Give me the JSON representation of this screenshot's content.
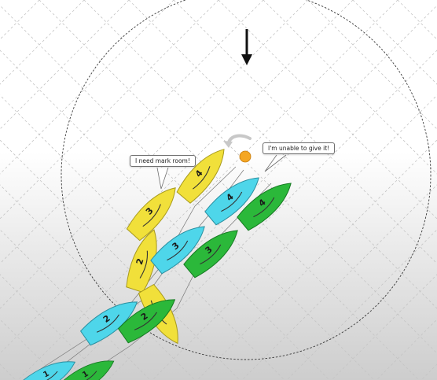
{
  "speech_bubbles": {
    "yellow_boat": "I need mark room!",
    "green_boat": "I'm unable to give it!"
  },
  "diagram": {
    "wind_indicator": "arrow-down-icon",
    "zone": "dashed-circle",
    "mark": "orange-mark",
    "boats": [
      {
        "name": "yellow",
        "color": "#f1e03a",
        "stroke": "#a89a1c",
        "positions": [
          "4",
          "3",
          "2",
          "1"
        ]
      },
      {
        "name": "blue",
        "color": "#4ed6ea",
        "stroke": "#2a8fa0",
        "positions": [
          "4",
          "3",
          "2",
          "1"
        ]
      },
      {
        "name": "green",
        "color": "#2bb83a",
        "stroke": "#167a22",
        "positions": [
          "4",
          "3",
          "2",
          "1"
        ]
      }
    ],
    "colors": {
      "mark": "#f4a623",
      "grid": "#c4c4c4",
      "zone": "#3a3a3a",
      "wind_arrow": "#111111"
    }
  }
}
